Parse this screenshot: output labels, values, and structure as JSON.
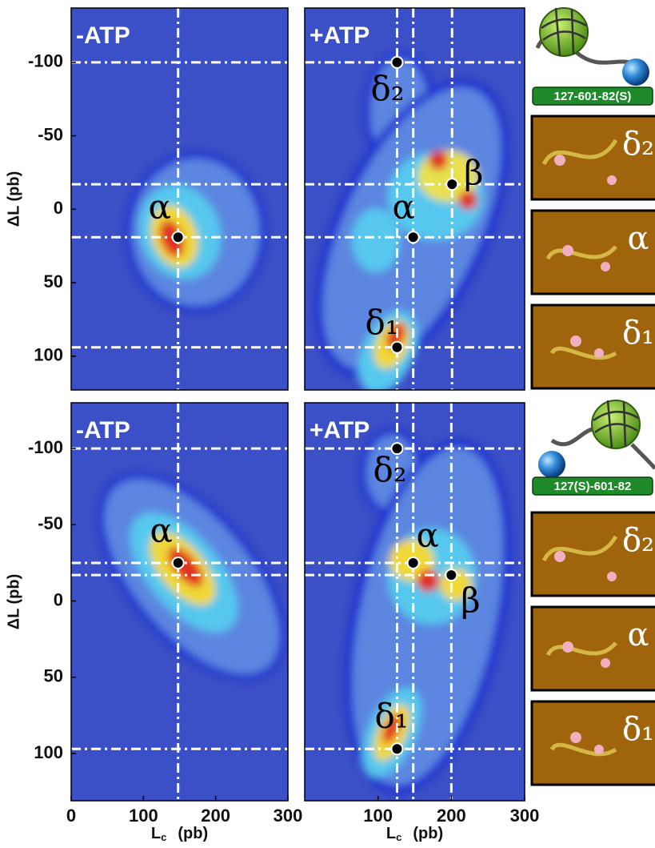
{
  "panels": [
    {
      "label": "-ATP",
      "xlim": [
        0,
        300
      ],
      "ylim": [
        -137,
        123
      ],
      "yticks": [
        -100,
        -50,
        0,
        50,
        100
      ],
      "xticks": [],
      "vlines": [
        148
      ],
      "hlines": [
        -100,
        -17,
        19,
        94
      ],
      "points": [
        {
          "x": 148,
          "y": 19,
          "label": "α"
        }
      ],
      "ylabel": "ΔL (pb)"
    },
    {
      "label": "+ATP",
      "xlim": [
        0,
        300
      ],
      "ylim": [
        -137,
        123
      ],
      "yticks": [],
      "xticks": [],
      "vlines": [
        126,
        148,
        201
      ],
      "hlines": [
        -100,
        -17,
        19,
        94
      ],
      "points": [
        {
          "x": 126,
          "y": -100,
          "label": "δ₂"
        },
        {
          "x": 201,
          "y": -17,
          "label": "β"
        },
        {
          "x": 148,
          "y": 19,
          "label": "α"
        },
        {
          "x": 126,
          "y": 94,
          "label": "δ₁"
        }
      ]
    },
    {
      "label": "-ATP",
      "xlim": [
        0,
        300
      ],
      "ylim": [
        -130,
        131
      ],
      "yticks": [
        -100,
        -50,
        0,
        50,
        100
      ],
      "xticks": [
        0,
        100,
        200,
        300
      ],
      "vlines": [
        148
      ],
      "hlines": [
        -100,
        -25,
        -17,
        97
      ],
      "points": [
        {
          "x": 148,
          "y": -25,
          "label": "α"
        }
      ],
      "ylabel": "ΔL (pb)",
      "xlabel": {
        "main": "L",
        "sub": "c",
        "unit": "(pb)"
      }
    },
    {
      "label": "+ATP",
      "xlim": [
        0,
        300
      ],
      "ylim": [
        -130,
        131
      ],
      "yticks": [],
      "xticks": [
        100,
        200,
        300
      ],
      "vlines": [
        126,
        148,
        200
      ],
      "hlines": [
        -100,
        -25,
        -17,
        97
      ],
      "points": [
        {
          "x": 126,
          "y": -100,
          "label": "δ₂"
        },
        {
          "x": 148,
          "y": -25,
          "label": "α"
        },
        {
          "x": 200,
          "y": -17,
          "label": "β"
        },
        {
          "x": 126,
          "y": 97,
          "label": "δ₁"
        }
      ],
      "xlabel": {
        "main": "L",
        "sub": "c",
        "unit": "(pb)"
      }
    }
  ],
  "constructs": [
    "127-601-82(S)",
    "127(S)-601-82"
  ],
  "afm": [
    [
      "δ₂",
      "α",
      "δ₁"
    ],
    [
      "δ₂",
      "α",
      "δ₁"
    ]
  ]
}
